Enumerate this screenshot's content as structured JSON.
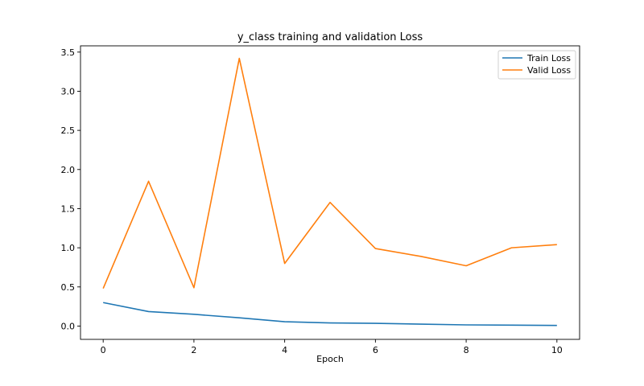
{
  "chart_data": {
    "type": "line",
    "title": "y_class training and validation Loss",
    "xlabel": "Epoch",
    "ylabel": "",
    "x": [
      0,
      1,
      2,
      3,
      4,
      5,
      6,
      7,
      8,
      9,
      10
    ],
    "xlim": [
      -0.5,
      10.5
    ],
    "ylim": [
      -0.17,
      3.58
    ],
    "xticks": [
      0,
      2,
      4,
      6,
      8,
      10
    ],
    "yticks": [
      0.0,
      0.5,
      1.0,
      1.5,
      2.0,
      2.5,
      3.0,
      3.5
    ],
    "xtick_labels": [
      "0",
      "2",
      "4",
      "6",
      "8",
      "10"
    ],
    "ytick_labels": [
      "0.0",
      "0.5",
      "1.0",
      "1.5",
      "2.0",
      "2.5",
      "3.0",
      "3.5"
    ],
    "grid": false,
    "legend_position": "top-right",
    "series": [
      {
        "name": "Train Loss",
        "color": "#1f77b4",
        "values": [
          0.3,
          0.185,
          0.15,
          0.105,
          0.055,
          0.04,
          0.035,
          0.025,
          0.015,
          0.012,
          0.008
        ]
      },
      {
        "name": "Valid Loss",
        "color": "#ff7f0e",
        "values": [
          0.48,
          1.85,
          0.49,
          3.42,
          0.8,
          1.58,
          0.99,
          0.89,
          0.77,
          1.0,
          1.04
        ]
      }
    ]
  }
}
